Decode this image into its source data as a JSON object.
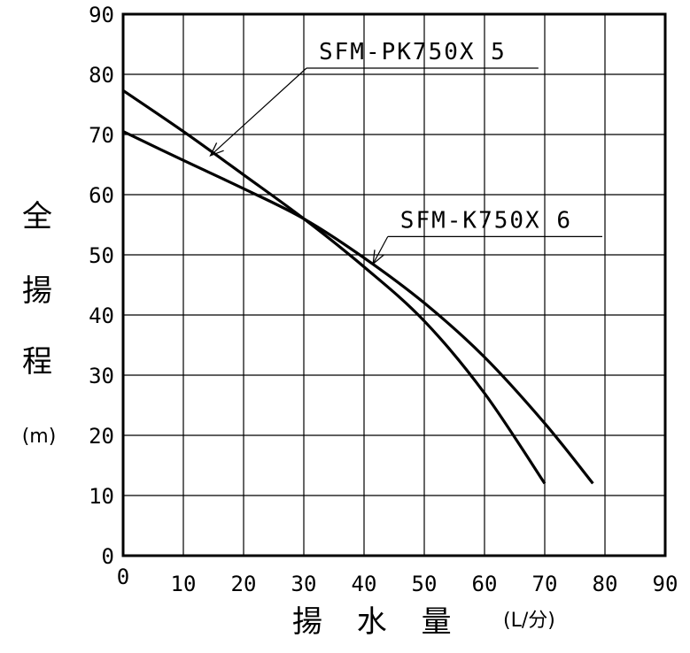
{
  "chart_data": {
    "type": "line",
    "xlabel": "揚 水 量",
    "xlabel_unit": "(L/分)",
    "ylabel_chars": [
      "全",
      "揚",
      "程"
    ],
    "ylabel_unit": "(m)",
    "xlim": [
      0,
      90
    ],
    "ylim": [
      0,
      90
    ],
    "x_ticks": [
      "0",
      "10",
      "20",
      "30",
      "40",
      "50",
      "60",
      "70",
      "80",
      "90"
    ],
    "y_ticks": [
      "0",
      "10",
      "20",
      "30",
      "40",
      "50",
      "60",
      "70",
      "80",
      "90"
    ],
    "grid": true,
    "series": [
      {
        "name": "SFM-PK750X 5",
        "x": [
          0,
          10,
          20,
          30,
          40,
          50,
          60,
          70
        ],
        "y": [
          77.3,
          70.5,
          63.3,
          56,
          48,
          39,
          27,
          12
        ]
      },
      {
        "name": "SFM-K750X 6",
        "x": [
          0,
          10,
          20,
          30,
          40,
          50,
          60,
          70,
          78
        ],
        "y": [
          70.5,
          65.7,
          61,
          56,
          49.5,
          42,
          33,
          22,
          12
        ]
      }
    ],
    "annotations": [
      {
        "text": "SFM-PK750X 5",
        "series": 0,
        "point": [
          14.5,
          66.5
        ],
        "label_pos": [
          32.5,
          82.5
        ]
      },
      {
        "text": "SFM-K750X 6",
        "series": 1,
        "point": [
          41.5,
          48.5
        ],
        "label_pos": [
          46,
          54.5
        ]
      }
    ]
  }
}
